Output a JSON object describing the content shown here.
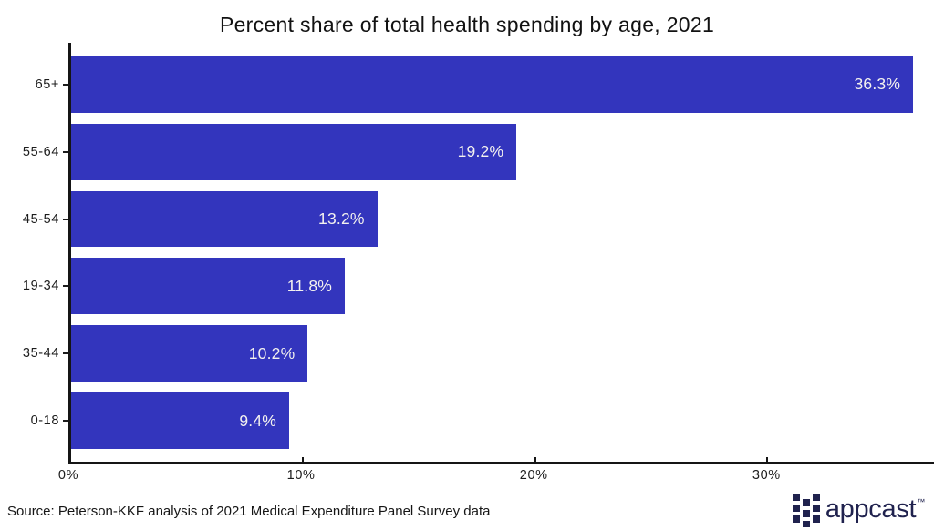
{
  "page": {
    "background": "#ffffff"
  },
  "chart_data": {
    "type": "bar",
    "orientation": "horizontal",
    "title": "Percent share of total health spending by age, 2021",
    "categories": [
      "65+",
      "55-64",
      "45-54",
      "19-34",
      "35-44",
      "0-18"
    ],
    "values": [
      36.3,
      19.2,
      13.2,
      11.8,
      10.2,
      9.4
    ],
    "value_labels": [
      "36.3%",
      "19.2%",
      "13.2%",
      "11.8%",
      "10.2%",
      "9.4%"
    ],
    "xlabel": "",
    "ylabel": "",
    "xlim": [
      0,
      37.2
    ],
    "xticks": [
      {
        "label": "0%",
        "value": 0
      },
      {
        "label": "10%",
        "value": 10
      },
      {
        "label": "20%",
        "value": 20
      },
      {
        "label": "30%",
        "value": 30
      }
    ],
    "grid": false,
    "legend": false,
    "bar_color": "#3335bd",
    "bar_label_color": "#f4f2ef",
    "axis_color": "#151515",
    "tick_label_color": "#1c1c1c"
  },
  "footer": {
    "source": "Source: Peterson-KKF analysis of 2021 Medical Expenditure Panel Survey data",
    "logo_text": "appcast",
    "logo_tm": "™",
    "logo_color": "#20224e"
  }
}
